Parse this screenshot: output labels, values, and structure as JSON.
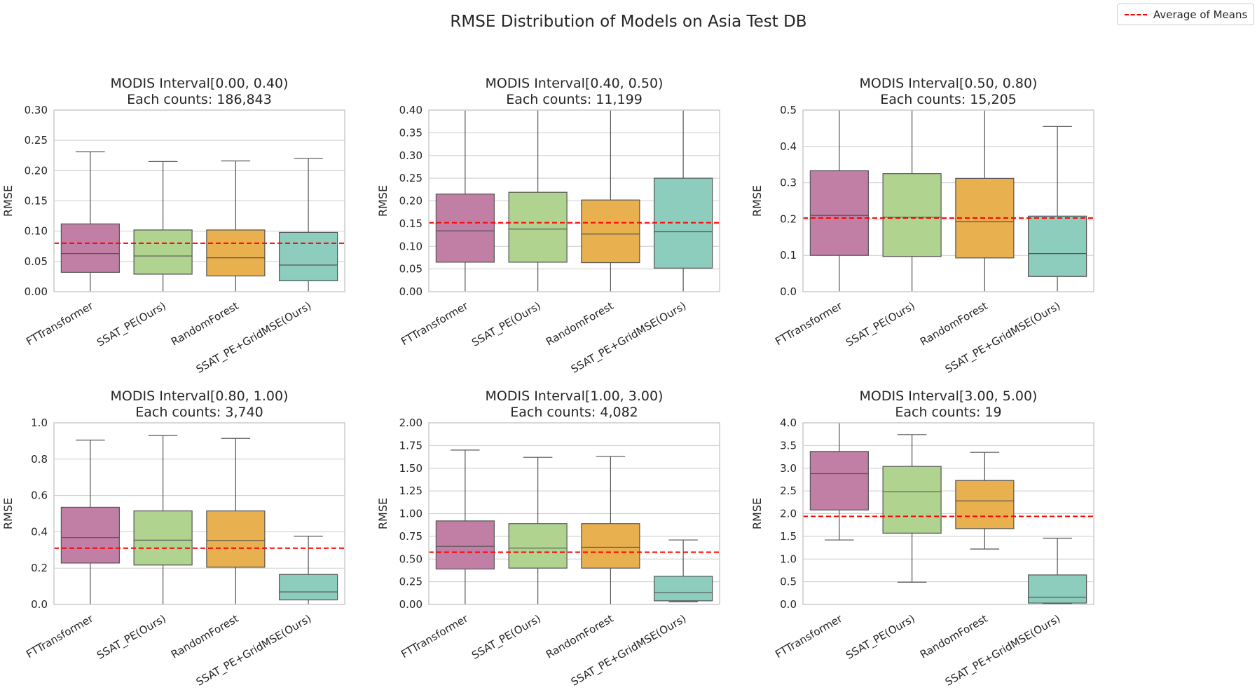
{
  "figure": {
    "title": "RMSE Distribution of Models on Asia Test DB",
    "legend": {
      "label": "Average of Means",
      "color": "#ff0000",
      "style": "dashed",
      "placement": "top-right"
    }
  },
  "colors": {
    "FTTransformer": "#c17fa5",
    "SSAT_PE(Ours)": "#b0d490",
    "RandomForest": "#e9b04f",
    "SSAT_PE+GridMSE(Ours)": "#8dcdbd",
    "mean_line": "#ff0000",
    "grid": "#cccccc"
  },
  "chart_data": [
    {
      "type": "box",
      "title": "MODIS Interval[0.00, 0.40)",
      "subtitle": "Each counts: 186,843",
      "ylabel": "RMSE",
      "ylim": [
        0,
        0.3
      ],
      "yticks": [
        "0.00",
        "0.05",
        "0.10",
        "0.15",
        "0.20",
        "0.25",
        "0.30"
      ],
      "categories": [
        "FTTransformer",
        "SSAT_PE(Ours)",
        "RandomForest",
        "SSAT_PE+GridMSE(Ours)"
      ],
      "boxes": [
        {
          "whisker_low": 0.0,
          "q1": 0.032,
          "median": 0.063,
          "q3": 0.112,
          "whisker_high": 0.231
        },
        {
          "whisker_low": 0.0,
          "q1": 0.029,
          "median": 0.059,
          "q3": 0.102,
          "whisker_high": 0.215
        },
        {
          "whisker_low": 0.0,
          "q1": 0.026,
          "median": 0.056,
          "q3": 0.102,
          "whisker_high": 0.216
        },
        {
          "whisker_low": 0.0,
          "q1": 0.018,
          "median": 0.044,
          "q3": 0.098,
          "whisker_high": 0.22
        }
      ],
      "mean_line": 0.08,
      "grid": true
    },
    {
      "type": "box",
      "title": "MODIS Interval[0.40, 0.50)",
      "subtitle": "Each counts: 11,199",
      "ylabel": "RMSE",
      "ylim": [
        0,
        0.4
      ],
      "yticks": [
        "0.00",
        "0.05",
        "0.10",
        "0.15",
        "0.20",
        "0.25",
        "0.30",
        "0.35",
        "0.40"
      ],
      "categories": [
        "FTTransformer",
        "SSAT_PE(Ours)",
        "RandomForest",
        "SSAT_PE+GridMSE(Ours)"
      ],
      "boxes": [
        {
          "whisker_low": 0.0,
          "q1": 0.065,
          "median": 0.134,
          "q3": 0.215,
          "whisker_high": 0.4
        },
        {
          "whisker_low": 0.0,
          "q1": 0.065,
          "median": 0.138,
          "q3": 0.219,
          "whisker_high": 0.4
        },
        {
          "whisker_low": 0.0,
          "q1": 0.064,
          "median": 0.127,
          "q3": 0.202,
          "whisker_high": 0.4
        },
        {
          "whisker_low": 0.0,
          "q1": 0.052,
          "median": 0.132,
          "q3": 0.25,
          "whisker_high": 0.4
        }
      ],
      "mean_line": 0.152,
      "grid": true
    },
    {
      "type": "box",
      "title": "MODIS Interval[0.50, 0.80)",
      "subtitle": "Each counts: 15,205",
      "ylabel": "RMSE",
      "ylim": [
        0,
        0.5
      ],
      "yticks": [
        "0.0",
        "0.1",
        "0.2",
        "0.3",
        "0.4",
        "0.5"
      ],
      "categories": [
        "FTTransformer",
        "SSAT_PE(Ours)",
        "RandomForest",
        "SSAT_PE+GridMSE(Ours)"
      ],
      "boxes": [
        {
          "whisker_low": 0.0,
          "q1": 0.1,
          "median": 0.21,
          "q3": 0.333,
          "whisker_high": 0.5
        },
        {
          "whisker_low": 0.0,
          "q1": 0.097,
          "median": 0.205,
          "q3": 0.325,
          "whisker_high": 0.5
        },
        {
          "whisker_low": 0.0,
          "q1": 0.093,
          "median": 0.193,
          "q3": 0.312,
          "whisker_high": 0.5
        },
        {
          "whisker_low": 0.0,
          "q1": 0.042,
          "median": 0.105,
          "q3": 0.208,
          "whisker_high": 0.455
        }
      ],
      "mean_line": 0.203,
      "grid": true
    },
    {
      "type": "box",
      "title": "MODIS Interval[0.80, 1.00)",
      "subtitle": "Each counts: 3,740",
      "ylabel": "RMSE",
      "ylim": [
        0,
        1.0
      ],
      "yticks": [
        "0.0",
        "0.2",
        "0.4",
        "0.6",
        "0.8",
        "1.0"
      ],
      "categories": [
        "FTTransformer",
        "SSAT_PE(Ours)",
        "RandomForest",
        "SSAT_PE+GridMSE(Ours)"
      ],
      "boxes": [
        {
          "whisker_low": 0.0,
          "q1": 0.228,
          "median": 0.368,
          "q3": 0.535,
          "whisker_high": 0.905
        },
        {
          "whisker_low": 0.0,
          "q1": 0.217,
          "median": 0.354,
          "q3": 0.515,
          "whisker_high": 0.93
        },
        {
          "whisker_low": 0.0,
          "q1": 0.205,
          "median": 0.352,
          "q3": 0.515,
          "whisker_high": 0.914
        },
        {
          "whisker_low": 0.0,
          "q1": 0.025,
          "median": 0.069,
          "q3": 0.165,
          "whisker_high": 0.376
        }
      ],
      "mean_line": 0.31,
      "grid": true
    },
    {
      "type": "box",
      "title": "MODIS Interval[1.00, 3.00)",
      "subtitle": "Each counts: 4,082",
      "ylabel": "RMSE",
      "ylim": [
        0,
        2.0
      ],
      "yticks": [
        "0.00",
        "0.25",
        "0.50",
        "0.75",
        "1.00",
        "1.25",
        "1.50",
        "1.75",
        "2.00"
      ],
      "categories": [
        "FTTransformer",
        "SSAT_PE(Ours)",
        "RandomForest",
        "SSAT_PE+GridMSE(Ours)"
      ],
      "boxes": [
        {
          "whisker_low": 0.0,
          "q1": 0.39,
          "median": 0.64,
          "q3": 0.92,
          "whisker_high": 1.7
        },
        {
          "whisker_low": 0.0,
          "q1": 0.4,
          "median": 0.62,
          "q3": 0.89,
          "whisker_high": 1.62
        },
        {
          "whisker_low": 0.0,
          "q1": 0.4,
          "median": 0.63,
          "q3": 0.89,
          "whisker_high": 1.63
        },
        {
          "whisker_low": 0.03,
          "q1": 0.04,
          "median": 0.13,
          "q3": 0.31,
          "whisker_high": 0.71
        }
      ],
      "mean_line": 0.575,
      "grid": true
    },
    {
      "type": "box",
      "title": "MODIS Interval[3.00, 5.00)",
      "subtitle": "Each counts: 19",
      "ylabel": "RMSE",
      "ylim": [
        0,
        4.0
      ],
      "yticks": [
        "0.0",
        "0.5",
        "1.0",
        "1.5",
        "2.0",
        "2.5",
        "3.0",
        "3.5",
        "4.0"
      ],
      "categories": [
        "FTTransformer",
        "SSAT_PE(Ours)",
        "RandomForest",
        "SSAT_PE+GridMSE(Ours)"
      ],
      "boxes": [
        {
          "whisker_low": 1.42,
          "q1": 2.08,
          "median": 2.88,
          "q3": 3.37,
          "whisker_high": 4.0
        },
        {
          "whisker_low": 0.49,
          "q1": 1.57,
          "median": 2.48,
          "q3": 3.04,
          "whisker_high": 3.74
        },
        {
          "whisker_low": 1.22,
          "q1": 1.67,
          "median": 2.28,
          "q3": 2.73,
          "whisker_high": 3.35
        },
        {
          "whisker_low": 0.02,
          "q1": 0.03,
          "median": 0.16,
          "q3": 0.65,
          "whisker_high": 1.46
        }
      ],
      "mean_line": 1.94,
      "grid": true
    }
  ]
}
